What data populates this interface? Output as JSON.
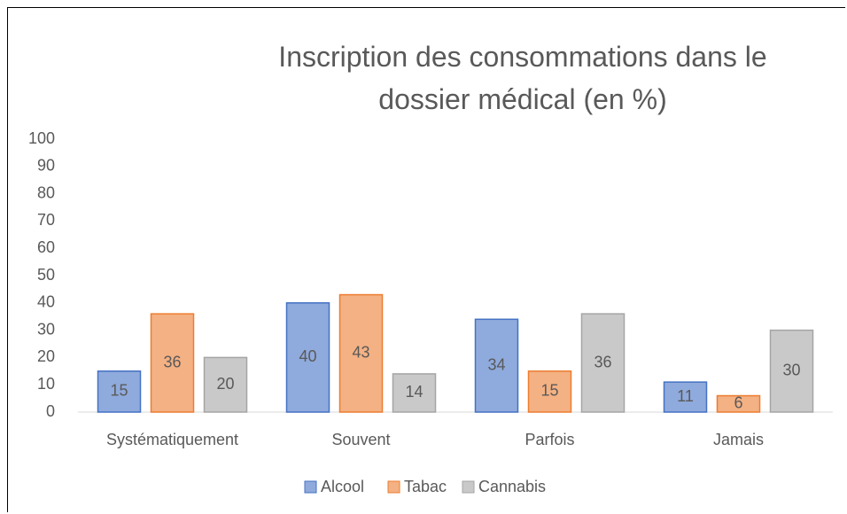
{
  "chart_data": {
    "type": "bar",
    "title": "Inscription des consommations dans le dossier médical (en %)",
    "categories": [
      "Systématiquement",
      "Souvent",
      "Parfois",
      "Jamais"
    ],
    "series": [
      {
        "name": "Alcool",
        "color": "#8faadc",
        "values": [
          15,
          40,
          34,
          11
        ]
      },
      {
        "name": "Tabac",
        "color": "#f4b183",
        "values": [
          36,
          43,
          15,
          6
        ]
      },
      {
        "name": "Cannabis",
        "color": "#c9c9c9",
        "values": [
          20,
          14,
          36,
          30
        ]
      }
    ],
    "ylim": [
      0,
      100
    ],
    "yticks": [
      0,
      10,
      20,
      30,
      40,
      50,
      60,
      70,
      80,
      90,
      100
    ],
    "grid": false,
    "legend": "bottom"
  }
}
